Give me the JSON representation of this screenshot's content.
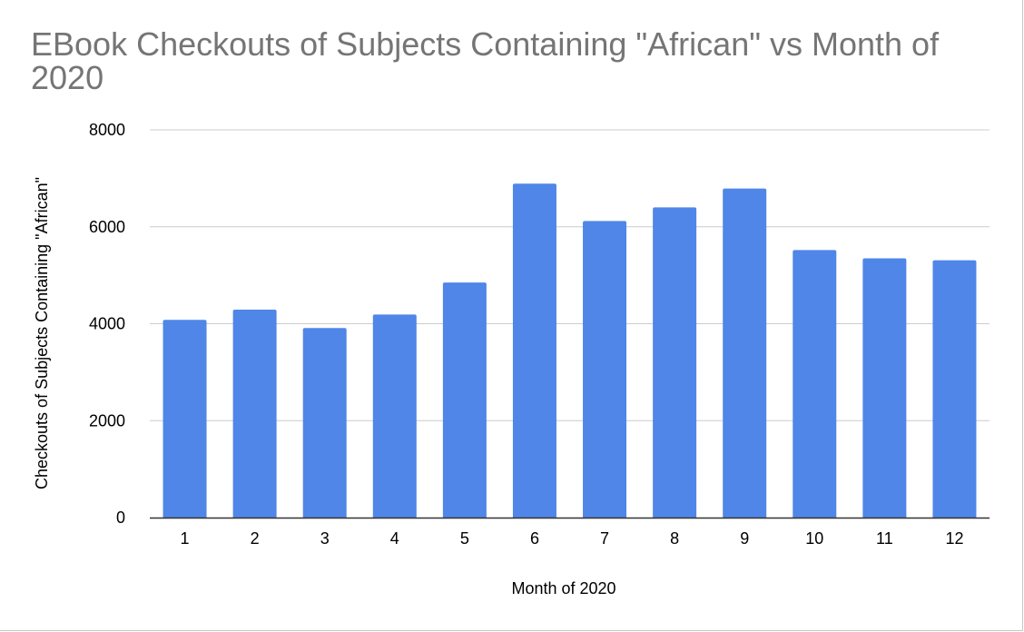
{
  "chart_data": {
    "type": "bar",
    "title": "EBook Checkouts of Subjects Containing \"African\" vs Month of 2020",
    "xlabel": "Month of 2020",
    "ylabel": "Checkouts of Subjects Containing \"African\"",
    "categories": [
      "1",
      "2",
      "3",
      "4",
      "5",
      "6",
      "7",
      "8",
      "9",
      "10",
      "11",
      "12"
    ],
    "values": [
      4080,
      4290,
      3910,
      4190,
      4850,
      6890,
      6120,
      6400,
      6790,
      5520,
      5350,
      5310
    ],
    "ylim": [
      0,
      8000
    ],
    "yticks": [
      "0",
      "2000",
      "4000",
      "6000",
      "8000"
    ],
    "grid": true,
    "legend": "none",
    "bar_color": "#4f86e8",
    "grid_color": "#cccccc",
    "axis_color": "#333333",
    "title_color": "#757575"
  }
}
